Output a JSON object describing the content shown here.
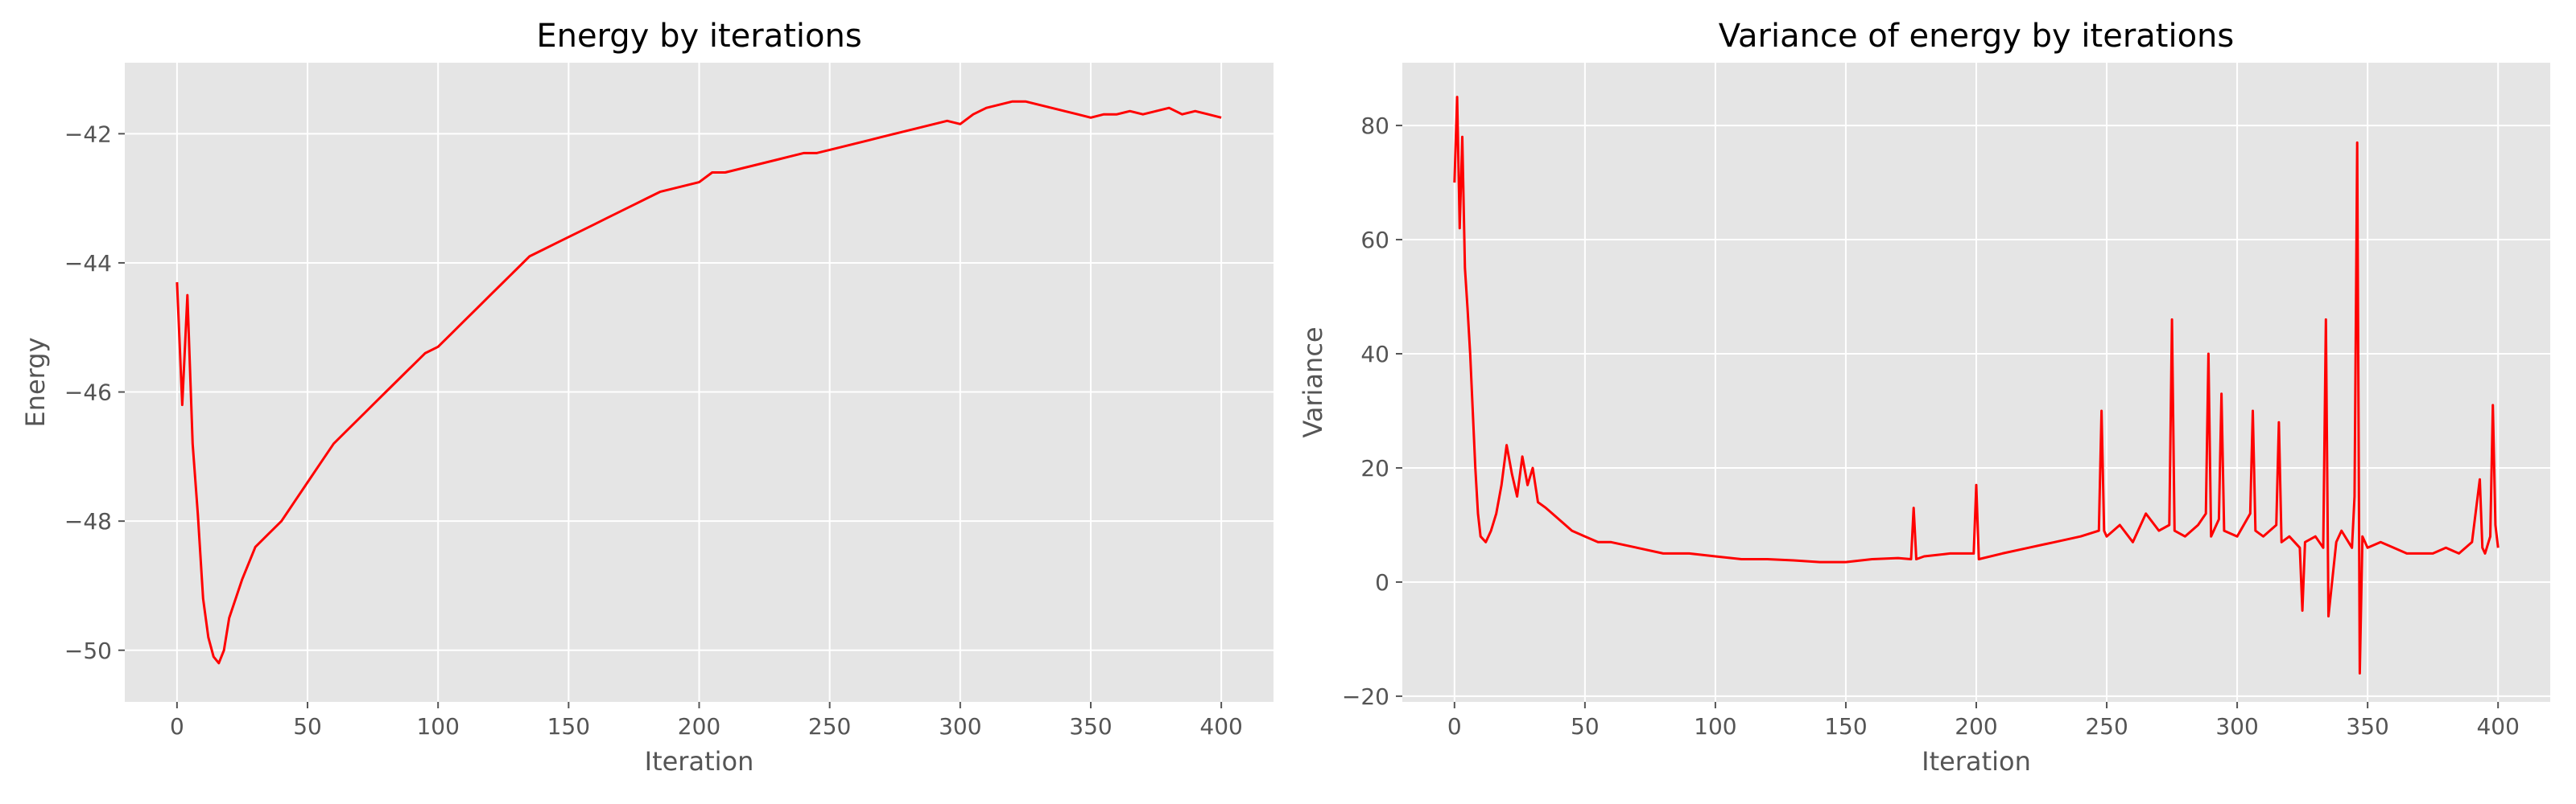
{
  "chart_data": [
    {
      "type": "line",
      "title": "Energy by iterations",
      "xlabel": "Iteration",
      "ylabel": "Energy",
      "xlim": [
        -20,
        420
      ],
      "ylim": [
        -50.8,
        -40.9
      ],
      "xticks": [
        0,
        50,
        100,
        150,
        200,
        250,
        300,
        350,
        400
      ],
      "xtick_labels": [
        "0",
        "50",
        "100",
        "150",
        "200",
        "250",
        "300",
        "350",
        "400"
      ],
      "yticks": [
        -50,
        -48,
        -46,
        -44,
        -42
      ],
      "ytick_labels": [
        "−50",
        "−48",
        "−46",
        "−44",
        "−42"
      ],
      "grid": true,
      "line_color": "#ff0000",
      "background_color": "#e5e5e5",
      "series": [
        {
          "x": [
            0,
            2,
            4,
            6,
            8,
            10,
            12,
            14,
            16,
            18,
            20,
            25,
            30,
            35,
            40,
            45,
            50,
            55,
            60,
            65,
            70,
            75,
            80,
            85,
            90,
            95,
            100,
            105,
            110,
            115,
            120,
            125,
            130,
            135,
            140,
            145,
            150,
            155,
            160,
            165,
            170,
            175,
            180,
            185,
            190,
            195,
            200,
            205,
            210,
            215,
            220,
            225,
            230,
            235,
            240,
            245,
            250,
            255,
            260,
            265,
            270,
            275,
            280,
            285,
            290,
            295,
            300,
            305,
            310,
            315,
            320,
            325,
            330,
            335,
            340,
            345,
            350,
            355,
            360,
            365,
            370,
            375,
            380,
            385,
            390,
            395,
            400
          ],
          "y": [
            -44.3,
            -46.2,
            -44.5,
            -46.8,
            -47.9,
            -49.2,
            -49.8,
            -50.1,
            -50.2,
            -50.0,
            -49.5,
            -48.9,
            -48.4,
            -48.2,
            -48.0,
            -47.7,
            -47.4,
            -47.1,
            -46.8,
            -46.6,
            -46.4,
            -46.2,
            -46.0,
            -45.8,
            -45.6,
            -45.4,
            -45.3,
            -45.1,
            -44.9,
            -44.7,
            -44.5,
            -44.3,
            -44.1,
            -43.9,
            -43.8,
            -43.7,
            -43.6,
            -43.5,
            -43.4,
            -43.3,
            -43.2,
            -43.1,
            -43.0,
            -42.9,
            -42.85,
            -42.8,
            -42.75,
            -42.6,
            -42.6,
            -42.55,
            -42.5,
            -42.45,
            -42.4,
            -42.35,
            -42.3,
            -42.3,
            -42.25,
            -42.2,
            -42.15,
            -42.1,
            -42.05,
            -42.0,
            -41.95,
            -41.9,
            -41.85,
            -41.8,
            -41.85,
            -41.7,
            -41.6,
            -41.55,
            -41.5,
            -41.5,
            -41.55,
            -41.6,
            -41.65,
            -41.7,
            -41.75,
            -41.7,
            -41.7,
            -41.65,
            -41.7,
            -41.65,
            -41.6,
            -41.7,
            -41.65,
            -41.7,
            -41.75
          ]
        }
      ]
    },
    {
      "type": "line",
      "title": "Variance of energy by iterations",
      "xlabel": "Iteration",
      "ylabel": "Variance",
      "xlim": [
        -20,
        420
      ],
      "ylim": [
        -21,
        91
      ],
      "xticks": [
        0,
        50,
        100,
        150,
        200,
        250,
        300,
        350,
        400
      ],
      "xtick_labels": [
        "0",
        "50",
        "100",
        "150",
        "200",
        "250",
        "300",
        "350",
        "400"
      ],
      "yticks": [
        -20,
        0,
        20,
        40,
        60,
        80
      ],
      "ytick_labels": [
        "−20",
        "0",
        "20",
        "40",
        "60",
        "80"
      ],
      "grid": true,
      "line_color": "#ff0000",
      "background_color": "#e5e5e5",
      "series": [
        {
          "x": [
            0,
            1,
            2,
            3,
            4,
            5,
            6,
            7,
            8,
            9,
            10,
            12,
            14,
            16,
            18,
            20,
            22,
            24,
            26,
            28,
            30,
            32,
            35,
            40,
            45,
            50,
            55,
            60,
            70,
            80,
            90,
            100,
            110,
            120,
            130,
            140,
            150,
            160,
            170,
            175,
            176,
            177,
            180,
            190,
            199,
            200,
            201,
            210,
            220,
            230,
            240,
            247,
            248,
            249,
            250,
            255,
            260,
            265,
            270,
            274,
            275,
            276,
            280,
            285,
            288,
            289,
            290,
            293,
            294,
            295,
            300,
            305,
            306,
            307,
            310,
            315,
            316,
            317,
            320,
            324,
            325,
            326,
            330,
            333,
            334,
            335,
            338,
            340,
            344,
            345,
            346,
            347,
            348,
            350,
            355,
            360,
            365,
            370,
            375,
            380,
            385,
            390,
            393,
            394,
            395,
            397,
            398,
            399,
            400
          ],
          "y": [
            70,
            85,
            62,
            78,
            55,
            48,
            40,
            30,
            20,
            12,
            8,
            7,
            9,
            12,
            17,
            24,
            19,
            15,
            22,
            17,
            20,
            14,
            13,
            11,
            9,
            8,
            7,
            7,
            6,
            5,
            5,
            4.5,
            4,
            4,
            3.8,
            3.5,
            3.5,
            4,
            4.2,
            4,
            13,
            4,
            4.5,
            5,
            5,
            17,
            4,
            5,
            6,
            7,
            8,
            9,
            30,
            9,
            8,
            10,
            7,
            12,
            9,
            10,
            46,
            9,
            8,
            10,
            12,
            40,
            8,
            11,
            33,
            9,
            8,
            12,
            30,
            9,
            8,
            10,
            28,
            7,
            8,
            6,
            -5,
            7,
            8,
            6,
            46,
            -6,
            7,
            9,
            6,
            15,
            77,
            -16,
            8,
            6,
            7,
            6,
            5,
            5,
            5,
            6,
            5,
            7,
            18,
            6,
            5,
            8,
            31,
            10,
            6
          ]
        }
      ]
    }
  ]
}
